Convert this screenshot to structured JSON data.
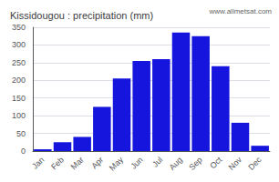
{
  "chart_data": {
    "type": "bar",
    "title": "Kissidougou : precipitation (mm)",
    "categories": [
      "Jan",
      "Feb",
      "Mar",
      "Apr",
      "May",
      "Jun",
      "Jul",
      "Aug",
      "Sep",
      "Oct",
      "Nov",
      "Dec"
    ],
    "values": [
      5,
      25,
      40,
      125,
      205,
      255,
      260,
      335,
      325,
      240,
      80,
      15
    ],
    "color": "#1515dd",
    "ylim": [
      0,
      350
    ],
    "yticks": [
      0,
      50,
      100,
      150,
      200,
      250,
      300,
      350
    ],
    "grid": true,
    "annotations": [
      "www.allmetsat.com"
    ]
  }
}
